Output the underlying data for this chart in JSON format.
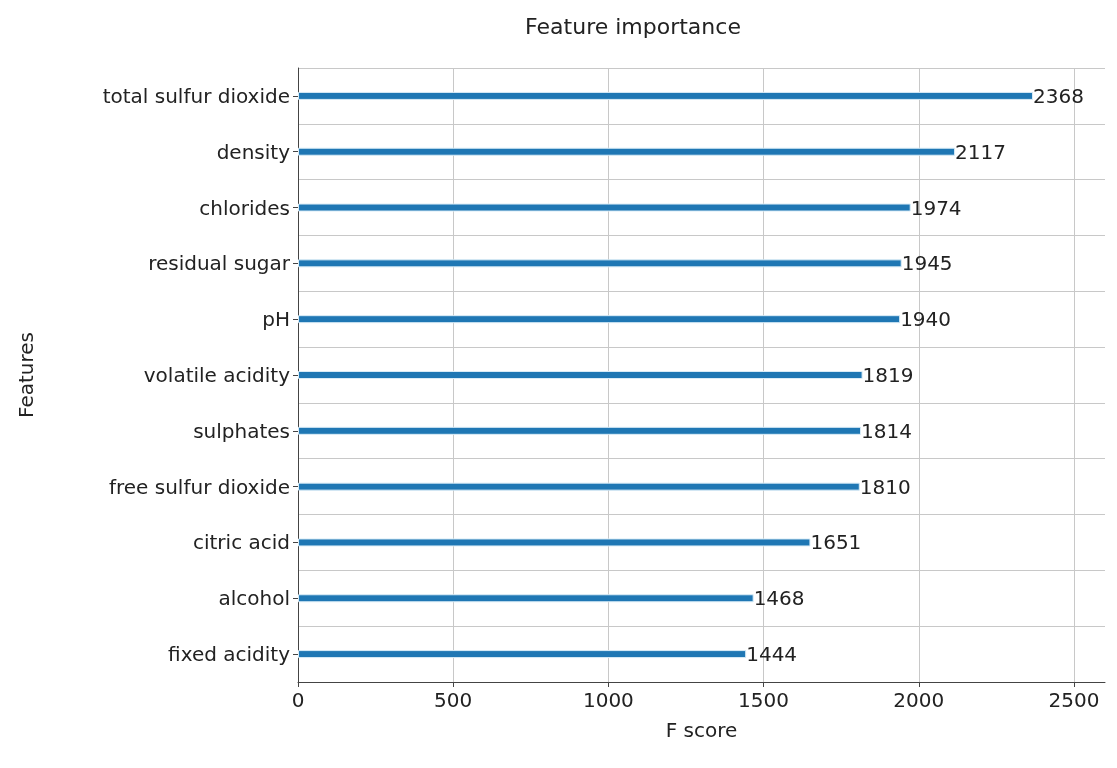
{
  "chart_data": {
    "type": "bar",
    "orientation": "horizontal",
    "title": "Feature importance",
    "xlabel": "F score",
    "ylabel": "Features",
    "categories": [
      "total sulfur dioxide",
      "density",
      "chlorides",
      "residual sugar",
      "pH",
      "volatile acidity",
      "sulphates",
      "free sulfur dioxide",
      "citric acid",
      "alcohol",
      "fixed acidity"
    ],
    "values": [
      2368,
      2117,
      1974,
      1945,
      1940,
      1819,
      1814,
      1810,
      1651,
      1468,
      1444
    ],
    "color": "#1f77b4",
    "xlim": [
      0,
      2600
    ],
    "xticks": [
      0,
      500,
      1000,
      1500,
      2000,
      2500
    ],
    "grid": true,
    "data_labels": true
  }
}
